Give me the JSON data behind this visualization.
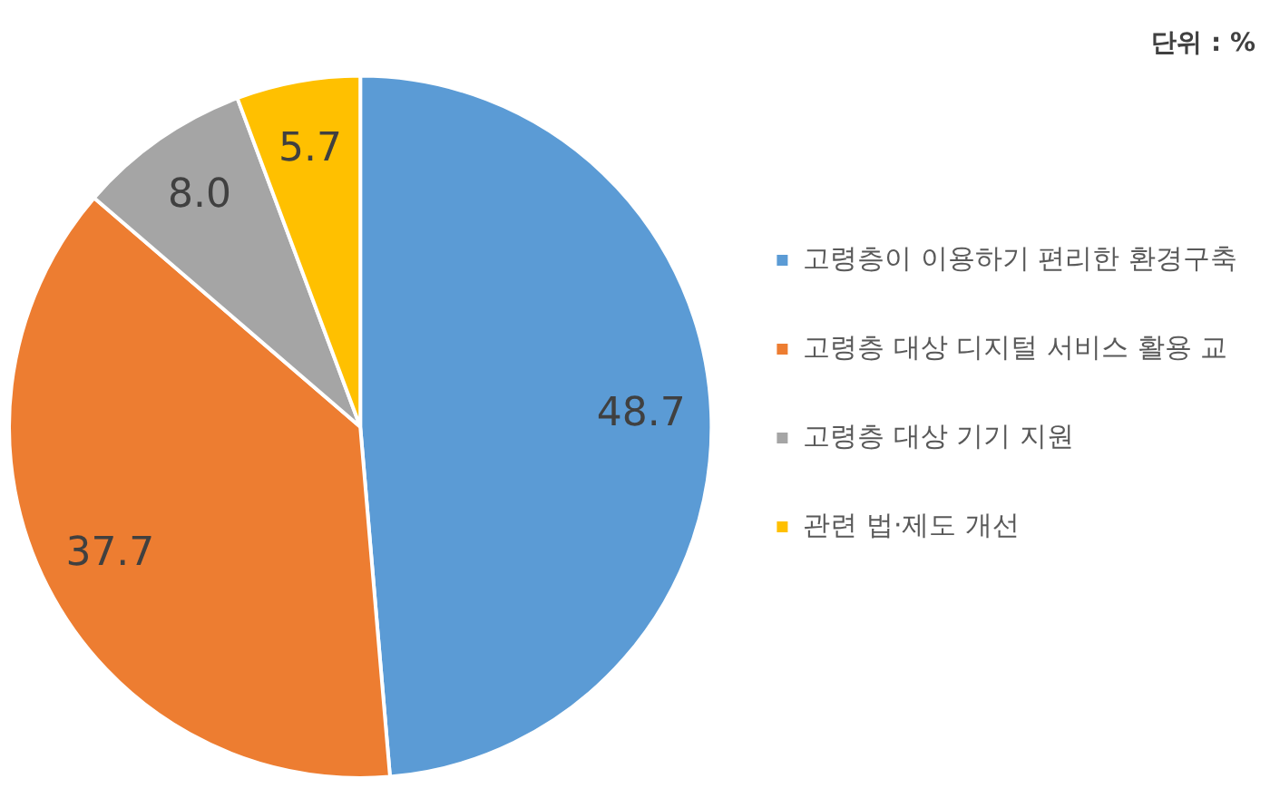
{
  "chart_data": {
    "type": "pie",
    "title": "단위 : %",
    "categories": [
      "고령층이 이용하기 편리한 환경구축",
      "고령층 대상 디지털 서비스 활용 교",
      "고령층 대상 기기 지원",
      "관련 법·제도 개선"
    ],
    "values": [
      48.7,
      37.7,
      8.0,
      5.7
    ],
    "colors": [
      "#5b9bd5",
      "#ed7d31",
      "#a5a5a5",
      "#ffc000"
    ],
    "value_labels": [
      "48.7",
      "37.7",
      "8.0",
      "5.7"
    ],
    "legend": "right"
  }
}
